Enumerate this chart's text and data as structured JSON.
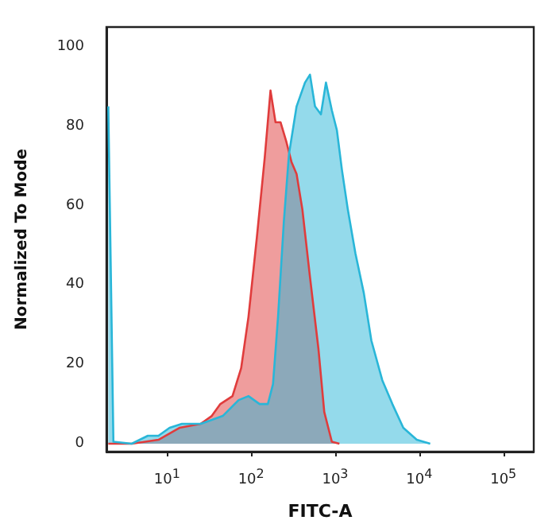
{
  "chart_data": {
    "type": "area",
    "xlabel": "FITC-A",
    "ylabel": "Normalized To Mode",
    "log": "x",
    "grid": false,
    "marker": "none",
    "xlim": [
      1.9,
      230000
    ],
    "xticks": [
      {
        "value": 10,
        "label": "10$^{1}$"
      },
      {
        "value": 100,
        "label": "10$^{2}$"
      },
      {
        "value": 1000,
        "label": "10$^{3}$"
      },
      {
        "value": 10000,
        "label": "10$^{4}$"
      },
      {
        "value": 100000,
        "label": "10$^{5}$"
      }
    ],
    "ylim": [
      -2,
      105
    ],
    "yticks": [
      0,
      20,
      40,
      60,
      80,
      100
    ],
    "series": [
      {
        "color": "#e03c3c",
        "x": [
          2,
          3.8,
          7.9,
          14,
          25,
          34,
          43,
          60,
          76,
          93,
          117,
          145,
          170,
          195,
          224,
          263,
          302,
          347,
          407,
          501,
          631,
          741,
          912,
          1122
        ],
        "values": [
          0,
          0,
          1,
          4,
          5,
          7,
          10,
          12,
          19,
          32,
          52,
          72,
          89,
          81,
          81,
          76,
          71,
          68,
          59,
          42,
          24,
          8,
          0.5,
          0
        ]
      },
      {
        "color": "#29b6d8",
        "x": [
          2,
          2.3,
          3.8,
          5.9,
          7.9,
          10.7,
          15,
          25,
          46,
          71,
          93,
          126,
          158,
          182,
          209,
          245,
          282,
          347,
          437,
          501,
          575,
          676,
          776,
          912,
          1047,
          1202,
          1413,
          1738,
          2188,
          2692,
          3631,
          4786,
          6457,
          9333,
          13490
        ],
        "values": [
          85,
          0.5,
          0,
          2,
          2,
          4,
          5,
          5,
          7,
          11,
          12,
          10,
          10,
          15,
          32,
          56,
          73,
          85,
          91,
          93,
          85,
          83,
          91,
          84,
          79,
          69,
          59,
          48,
          38,
          26,
          16,
          10,
          4,
          1,
          0
        ]
      }
    ]
  }
}
